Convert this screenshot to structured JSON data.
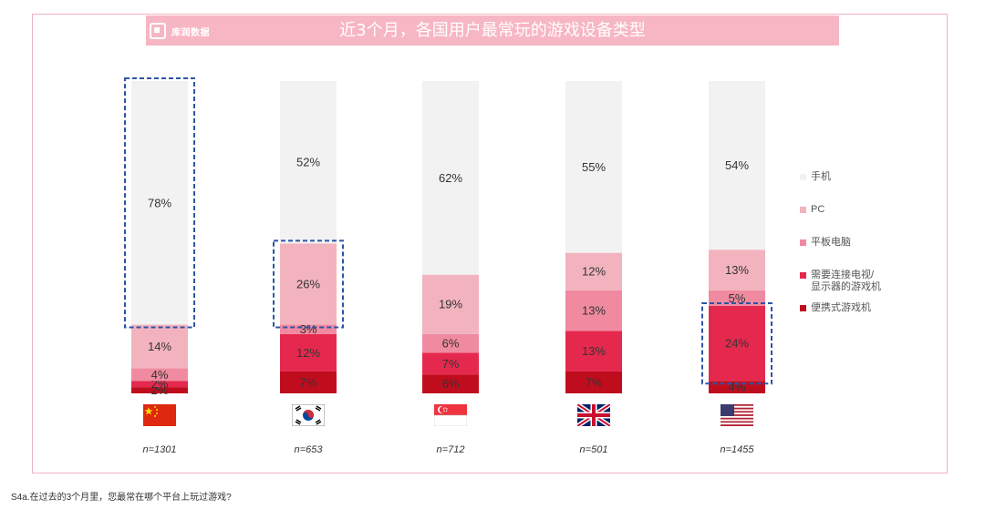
{
  "header": {
    "brand": "库润数据",
    "title": "近3个月，各国用户最常玩的游戏设备类型"
  },
  "colors": {
    "mobile": "#f2f2f2",
    "pc": "#f2b3bf",
    "tablet": "#f08aa0",
    "console": "#e5294e",
    "portable": "#c00d1e",
    "highlight": "#2e54a6",
    "frame": "#f2b3c0",
    "titlebar": "#f7b6c3"
  },
  "legend": [
    {
      "label": "手机",
      "color_key": "mobile"
    },
    {
      "label": "PC",
      "color_key": "pc"
    },
    {
      "label": "平板电脑",
      "color_key": "tablet"
    },
    {
      "label": "需要连接电视/显示器的游戏机",
      "color_key": "console"
    },
    {
      "label": "便携式游戏机",
      "color_key": "portable"
    }
  ],
  "chart_data": {
    "type": "bar",
    "stacked": true,
    "percent": true,
    "categories": [
      "中国",
      "韩国",
      "新加坡",
      "英国",
      "美国"
    ],
    "sample_sizes": [
      "n=1301",
      "n=653",
      "n=712",
      "n=501",
      "n=1455"
    ],
    "flags": [
      "cn-flag",
      "kr-flag",
      "sg-flag",
      "uk-flag",
      "us-flag"
    ],
    "series": [
      {
        "name": "便携式游戏机",
        "color_key": "portable",
        "values": [
          2,
          7,
          6,
          7,
          4
        ]
      },
      {
        "name": "需要连接电视/显示器的游戏机",
        "color_key": "console",
        "values": [
          2,
          12,
          7,
          13,
          24
        ]
      },
      {
        "name": "平板电脑",
        "color_key": "tablet",
        "values": [
          4,
          3,
          6,
          13,
          5
        ]
      },
      {
        "name": "PC",
        "color_key": "pc",
        "values": [
          14,
          26,
          19,
          12,
          13
        ]
      },
      {
        "name": "手机",
        "color_key": "mobile",
        "values": [
          78,
          52,
          62,
          55,
          54
        ]
      }
    ],
    "highlights": [
      {
        "category": "中国",
        "series": "手机"
      },
      {
        "category": "韩国",
        "series": "PC"
      },
      {
        "category": "美国",
        "series": "需要连接电视/显示器的游戏机"
      }
    ],
    "ylim": [
      0,
      100
    ],
    "legend_position": "right",
    "grid": false
  },
  "footnote": "S4a.在过去的3个月里，您最常在哪个平台上玩过游戏?"
}
